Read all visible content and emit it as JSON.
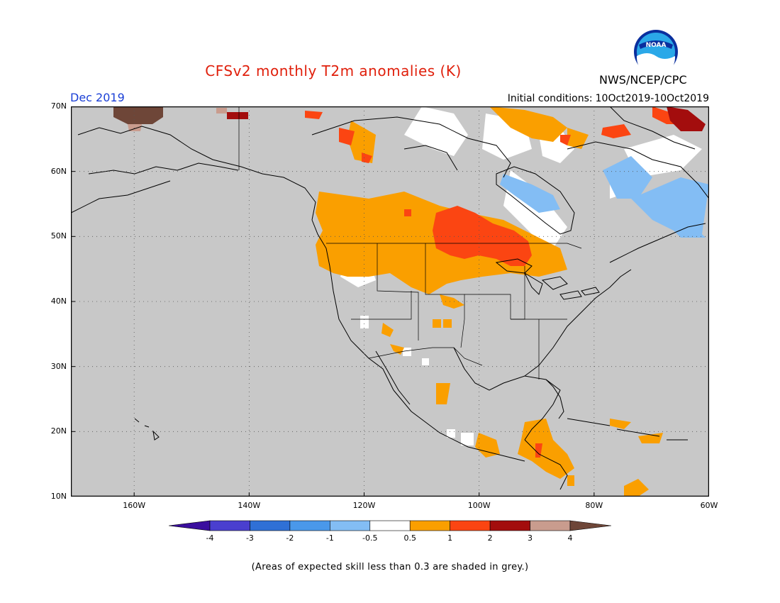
{
  "header": {
    "title": "CFSv2 monthly T2m anomalies (K)",
    "agency": "NWS/NCEP/CPC",
    "logo_text": "NOAA",
    "period": "Dec 2019",
    "initial_conditions_label": "Initial conditions:",
    "initial_conditions_value": "10Oct2019-10Oct2019"
  },
  "map": {
    "lat_labels": [
      "70N",
      "60N",
      "50N",
      "40N",
      "30N",
      "20N",
      "10N"
    ],
    "lon_labels": [
      "160W",
      "140W",
      "120W",
      "100W",
      "80W",
      "60W"
    ],
    "lon_range": [
      -171,
      -60
    ],
    "lat_range": [
      10,
      70
    ],
    "background_color": "#c8c8c8",
    "grid": "dotted"
  },
  "colorbar": {
    "tick_labels": [
      "-4",
      "-3",
      "-2",
      "-1",
      "-0.5",
      "0.5",
      "1",
      "2",
      "3",
      "4"
    ],
    "colors": [
      "#3a0e9e",
      "#4a3fcf",
      "#2f70d6",
      "#4a98ea",
      "#83bdf4",
      "#ffffff",
      "#fa9f00",
      "#fb4512",
      "#a30d0d",
      "#c99c8e",
      "#6e4638"
    ]
  },
  "footnote": "(Areas of expected skill less than 0.3 are shaded in grey.)"
}
